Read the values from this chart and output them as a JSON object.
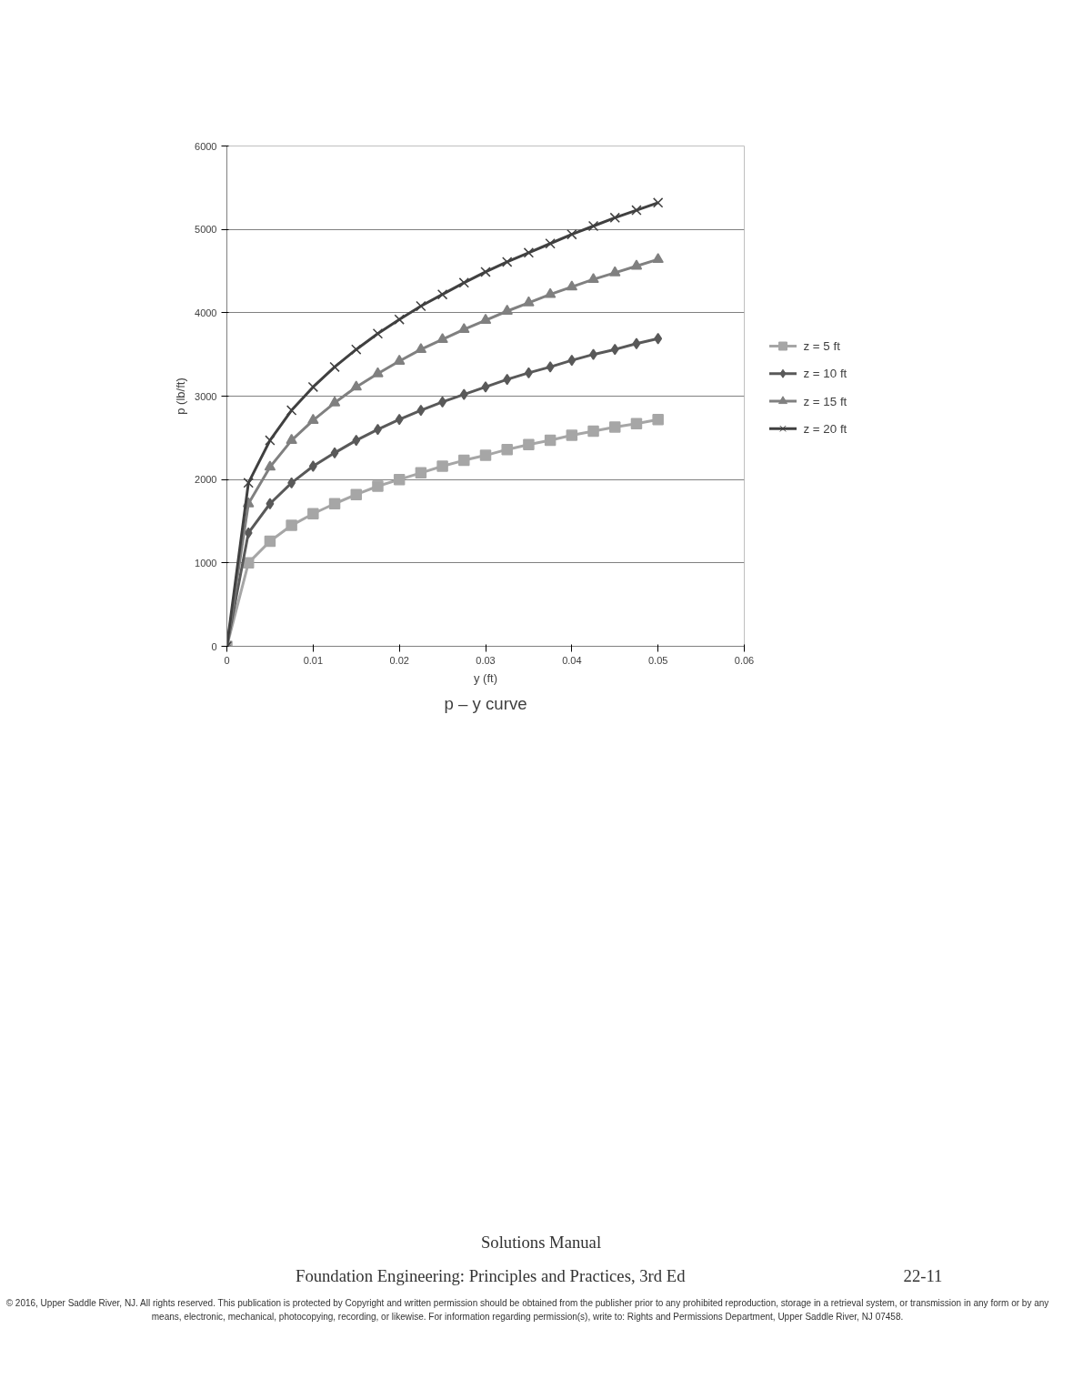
{
  "chart_data": {
    "type": "line",
    "title": "p – y curve",
    "xlabel": "y (ft)",
    "ylabel": "p (lb/ft)",
    "x": [
      0,
      0.0025,
      0.005,
      0.0075,
      0.01,
      0.0125,
      0.015,
      0.0175,
      0.02,
      0.0225,
      0.025,
      0.0275,
      0.03,
      0.0325,
      0.035,
      0.0375,
      0.04,
      0.0425,
      0.045,
      0.0475,
      0.05
    ],
    "series": [
      {
        "name": "z = 5 ft",
        "color": "#a6a6a6",
        "marker": "square",
        "values": [
          0,
          1000,
          1260,
          1450,
          1590,
          1710,
          1820,
          1920,
          2000,
          2080,
          2160,
          2230,
          2290,
          2360,
          2420,
          2470,
          2530,
          2580,
          2630,
          2670,
          2720
        ]
      },
      {
        "name": "z = 10 ft",
        "color": "#595959",
        "marker": "diamond",
        "values": [
          0,
          1360,
          1710,
          1960,
          2160,
          2320,
          2470,
          2600,
          2720,
          2830,
          2930,
          3020,
          3110,
          3200,
          3280,
          3350,
          3430,
          3500,
          3560,
          3630,
          3690
        ]
      },
      {
        "name": "z = 15 ft",
        "color": "#808080",
        "marker": "triangle",
        "values": [
          0,
          1710,
          2150,
          2470,
          2710,
          2920,
          3110,
          3270,
          3420,
          3560,
          3680,
          3800,
          3910,
          4020,
          4120,
          4220,
          4310,
          4400,
          4480,
          4560,
          4640
        ]
      },
      {
        "name": "z = 20 ft",
        "color": "#404040",
        "marker": "cross",
        "values": [
          0,
          1960,
          2470,
          2830,
          3110,
          3350,
          3560,
          3750,
          3920,
          4080,
          4220,
          4360,
          4490,
          4610,
          4720,
          4830,
          4940,
          5040,
          5140,
          5230,
          5320
        ]
      }
    ],
    "xlim": [
      0,
      0.06
    ],
    "xticks": [
      0,
      0.01,
      0.02,
      0.03,
      0.04,
      0.05,
      0.06
    ],
    "ylim": [
      0,
      6000
    ],
    "yticks": [
      0,
      1000,
      2000,
      3000,
      4000,
      5000,
      6000
    ],
    "grid": "y",
    "legend": "right",
    "annotations": [
      "Solutions Manual",
      "Foundation Engineering: Principles and Practices, 3rd Ed",
      "22-11",
      "© 2016, Upper Saddle River, NJ. All rights reserved. This publication is protected by Copyright and written permission should be obtained from the publisher prior to any prohibited reproduction, storage in a retrieval system, or transmission in any form or by any means, electronic, mechanical, photocopying, recording, or likewise. For information regarding permission(s), write to: Rights and Permissions Department, Upper Saddle River, NJ 07458."
    ]
  }
}
